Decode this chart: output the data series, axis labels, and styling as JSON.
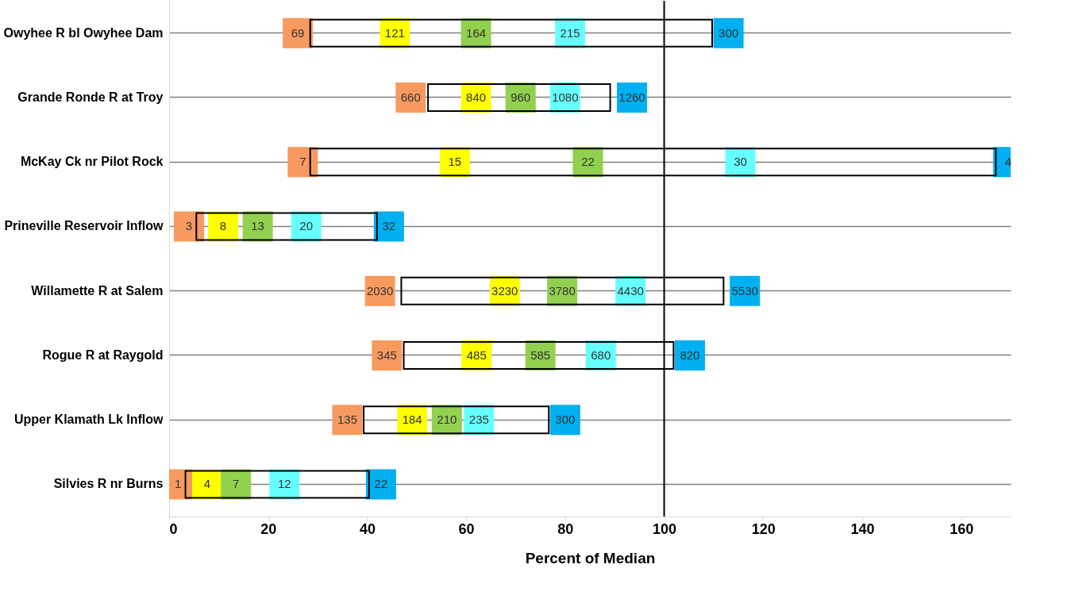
{
  "chart_data": {
    "type": "bar",
    "orientation": "horizontal",
    "xlabel": "Percent of Median",
    "categories": [
      "Owyhee R bl Owyhee Dam",
      "Grande Ronde R at Troy",
      "McKay Ck nr Pilot Rock",
      "Prineville Reservoir Inflow",
      "Willamette R at Salem",
      "Rogue R at Raygold",
      "Upper Klamath Lk Inflow",
      "Silvies R nr Burns"
    ],
    "xlim": [
      0,
      170
    ],
    "xticks": [
      0,
      20,
      40,
      60,
      80,
      100,
      120,
      140,
      160
    ],
    "grid": "y",
    "series": [
      {
        "color": "#000000",
        "base": [
          28.5,
          52.3,
          28.5,
          5.5,
          46.9,
          47.4,
          39.3,
          3.3
        ],
        "values": [
          81.2,
          36.8,
          138.5,
          36.5,
          65.1,
          54.5,
          37.4,
          37.1
        ]
      },
      {
        "type": "scatter",
        "color": "#f79a60",
        "values": [
          26,
          48.8,
          27,
          4,
          42.6,
          44,
          36,
          1.8
        ]
      },
      {
        "type": "scatter",
        "color": "#ffff00",
        "values": [
          45.6,
          62,
          57.7,
          10.9,
          67.8,
          62.1,
          49.1,
          7.7
        ]
      },
      {
        "type": "scatter",
        "color": "#92d050",
        "values": [
          62,
          71,
          84.6,
          17.9,
          79.4,
          75,
          56.1,
          13.5
        ]
      },
      {
        "type": "scatter",
        "color": "#66ffff",
        "values": [
          81,
          80,
          115.4,
          27.7,
          93.2,
          87.2,
          62.6,
          23.3
        ]
      },
      {
        "type": "scatter",
        "color": "#00b0f0",
        "values": [
          113,
          93.5,
          169.5,
          44.4,
          116.3,
          105.2,
          80,
          42.8
        ]
      }
    ],
    "annotations": [
      {
        "text": "69",
        "x": 26,
        "y": "Owyhee R bl Owyhee Dam"
      },
      {
        "text": "121",
        "x": 45.6,
        "y": "Owyhee R bl Owyhee Dam"
      },
      {
        "text": "164",
        "x": 62,
        "y": "Owyhee R bl Owyhee Dam"
      },
      {
        "text": "215",
        "x": 81,
        "y": "Owyhee R bl Owyhee Dam"
      },
      {
        "text": "300",
        "x": 113,
        "y": "Owyhee R bl Owyhee Dam"
      },
      {
        "text": "660",
        "x": 48.8,
        "y": "Grande Ronde R at Troy"
      },
      {
        "text": "840",
        "x": 62,
        "y": "Grande Ronde R at Troy"
      },
      {
        "text": "960",
        "x": 71,
        "y": "Grande Ronde R at Troy"
      },
      {
        "text": "1080",
        "x": 80,
        "y": "Grande Ronde R at Troy"
      },
      {
        "text": "1260",
        "x": 93.5,
        "y": "Grande Ronde R at Troy"
      },
      {
        "text": "7",
        "x": 27,
        "y": "McKay Ck nr Pilot Rock"
      },
      {
        "text": "15",
        "x": 57.7,
        "y": "McKay Ck nr Pilot Rock"
      },
      {
        "text": "22",
        "x": 84.6,
        "y": "McKay Ck nr Pilot Rock"
      },
      {
        "text": "30",
        "x": 115.4,
        "y": "McKay Ck nr Pilot Rock"
      },
      {
        "text": "4",
        "x": 169.5,
        "y": "McKay Ck nr Pilot Rock"
      },
      {
        "text": "3",
        "x": 4,
        "y": "Prineville Reservoir Inflow"
      },
      {
        "text": "8",
        "x": 10.9,
        "y": "Prineville Reservoir Inflow"
      },
      {
        "text": "13",
        "x": 17.9,
        "y": "Prineville Reservoir Inflow"
      },
      {
        "text": "20",
        "x": 27.7,
        "y": "Prineville Reservoir Inflow"
      },
      {
        "text": "32",
        "x": 44.4,
        "y": "Prineville Reservoir Inflow"
      },
      {
        "text": "2030",
        "x": 42.6,
        "y": "Willamette R at Salem"
      },
      {
        "text": "3230",
        "x": 67.8,
        "y": "Willamette R at Salem"
      },
      {
        "text": "3780",
        "x": 79.4,
        "y": "Willamette R at Salem"
      },
      {
        "text": "4430",
        "x": 93.2,
        "y": "Willamette R at Salem"
      },
      {
        "text": "5530",
        "x": 116.3,
        "y": "Willamette R at Salem"
      },
      {
        "text": "345",
        "x": 44,
        "y": "Rogue R at Raygold"
      },
      {
        "text": "485",
        "x": 62.1,
        "y": "Rogue R at Raygold"
      },
      {
        "text": "585",
        "x": 75,
        "y": "Rogue R at Raygold"
      },
      {
        "text": "680",
        "x": 87.2,
        "y": "Rogue R at Raygold"
      },
      {
        "text": "820",
        "x": 105.2,
        "y": "Rogue R at Raygold"
      },
      {
        "text": "135",
        "x": 36,
        "y": "Upper Klamath Lk Inflow"
      },
      {
        "text": "184",
        "x": 49.1,
        "y": "Upper Klamath Lk Inflow"
      },
      {
        "text": "210",
        "x": 56.1,
        "y": "Upper Klamath Lk Inflow"
      },
      {
        "text": "235",
        "x": 62.6,
        "y": "Upper Klamath Lk Inflow"
      },
      {
        "text": "300",
        "x": 80,
        "y": "Upper Klamath Lk Inflow"
      },
      {
        "text": "1",
        "x": 1.8,
        "y": "Silvies R nr Burns"
      },
      {
        "text": "4",
        "x": 7.7,
        "y": "Silvies R nr Burns"
      },
      {
        "text": "7",
        "x": 13.5,
        "y": "Silvies R nr Burns"
      },
      {
        "text": "12",
        "x": 23.3,
        "y": "Silvies R nr Burns"
      },
      {
        "text": "22",
        "x": 42.8,
        "y": "Silvies R nr Burns"
      }
    ],
    "ref_lines": [
      {
        "axis": "x",
        "value": 100,
        "color": "#000000"
      }
    ]
  }
}
